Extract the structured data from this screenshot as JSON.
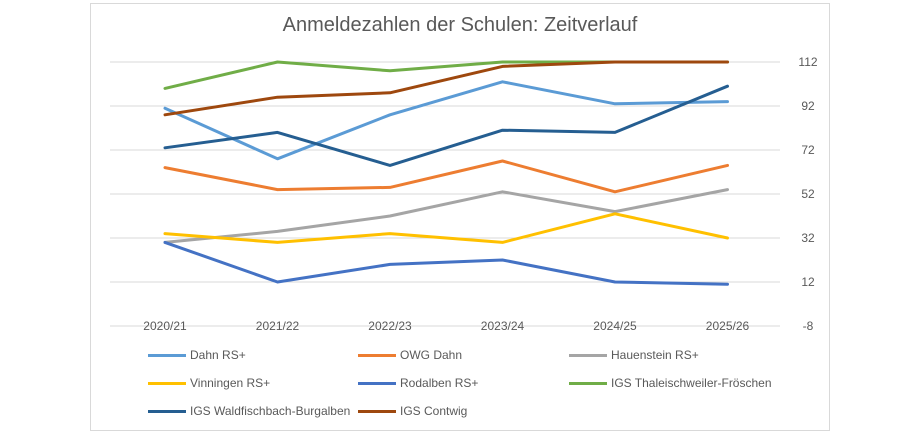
{
  "chart_data": {
    "type": "line",
    "title": "Anmeldezahlen der Schulen: Zeitverlauf",
    "categories": [
      "2020/21",
      "2021/22",
      "2022/23",
      "2023/24",
      "2024/25",
      "2025/26"
    ],
    "ylim": [
      -8,
      112
    ],
    "yticks": [
      "112",
      "92",
      "72",
      "52",
      "32",
      "12",
      "-8"
    ],
    "ytick_values": [
      112,
      92,
      72,
      52,
      32,
      12,
      -8
    ],
    "y_axis_side": "right",
    "grid": true,
    "legend_position": "bottom",
    "series": [
      {
        "name": "Dahn RS+",
        "color": "#5b9bd5",
        "values": [
          91,
          68,
          88,
          103,
          93,
          94
        ]
      },
      {
        "name": "OWG Dahn",
        "color": "#ed7d31",
        "values": [
          64,
          54,
          55,
          67,
          53,
          65
        ]
      },
      {
        "name": "Hauenstein RS+",
        "color": "#a5a5a5",
        "values": [
          30,
          35,
          42,
          53,
          44,
          54
        ]
      },
      {
        "name": "Vinningen RS+",
        "color": "#ffc000",
        "values": [
          34,
          30,
          34,
          30,
          43,
          32
        ]
      },
      {
        "name": "Rodalben RS+",
        "color": "#4472c4",
        "values": [
          30,
          12,
          20,
          22,
          12,
          11
        ]
      },
      {
        "name": "IGS Thaleischweiler-Fröschen",
        "color": "#70ad47",
        "values": [
          100,
          112,
          108,
          112,
          112,
          112
        ]
      },
      {
        "name": "IGS Waldfischbach-Burgalben",
        "color": "#255e91",
        "values": [
          73,
          80,
          65,
          81,
          80,
          101
        ]
      },
      {
        "name": "IGS Contwig",
        "color": "#9e480e",
        "values": [
          88,
          96,
          98,
          110,
          112,
          112
        ]
      }
    ]
  }
}
